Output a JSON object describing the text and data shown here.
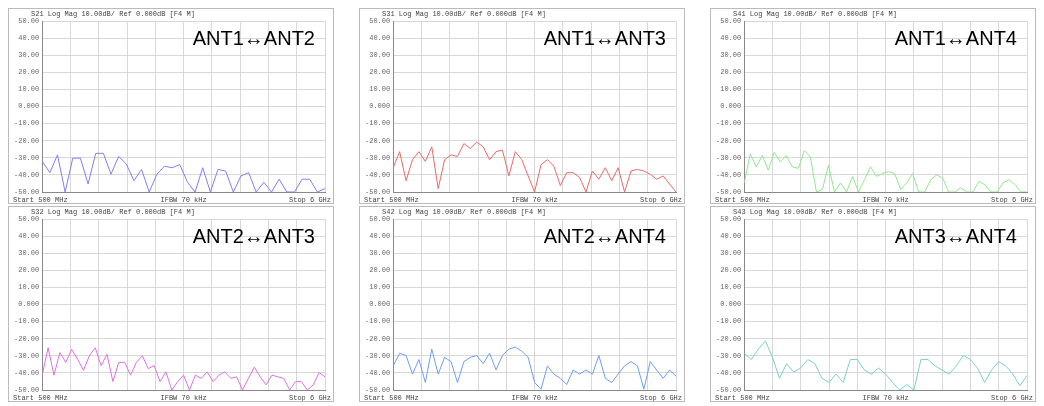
{
  "chart_data": [
    {
      "type": "line",
      "title": "ANT1↔ANT2",
      "subtitle": "S21 Log Mag 10.00dB/ Ref 0.000dB [F4 M]",
      "annotations": [
        "Start 500 MHz",
        "IFBW 70 kHz",
        "Stop 6 GHz"
      ],
      "categories": [
        null,
        null,
        null,
        null,
        null,
        null,
        null,
        null,
        null,
        null,
        null,
        null,
        null,
        null,
        null,
        null,
        null,
        null,
        null,
        null,
        null,
        null,
        null,
        null,
        null,
        null,
        null,
        null,
        null,
        null,
        null,
        null,
        null,
        null,
        null,
        null,
        null,
        null
      ],
      "ylim": [
        -50,
        50
      ],
      "yticks": [
        {
          "value": -50,
          "label": "-50.00"
        },
        {
          "value": -40,
          "label": "-40.00"
        },
        {
          "value": -30,
          "label": "-30.00"
        },
        {
          "value": -20,
          "label": "-20.00"
        },
        {
          "value": -10,
          "label": "-10.00"
        },
        {
          "value": 0,
          "label": "0.000"
        },
        {
          "value": 10,
          "label": "10.00"
        },
        {
          "value": 20,
          "label": "20.00"
        },
        {
          "value": 30,
          "label": "30.00"
        },
        {
          "value": 40,
          "label": "40.00"
        },
        {
          "value": 50,
          "label": "50.00"
        }
      ],
      "grid": true,
      "tick_labels": "y",
      "line_style": "solid",
      "marker": "none",
      "series": [
        {
          "color": "#8080f0",
          "values": [
            -32.1,
            -38.7,
            -28.3,
            -50,
            -30.2,
            -30.2,
            -45.3,
            -27.4,
            -27.4,
            -39.6,
            -29.2,
            -33.6,
            -43.4,
            -36.8,
            -50,
            -39.6,
            -34.9,
            -35.8,
            -34,
            -44.2,
            -50,
            -35.8,
            -50,
            -36.8,
            -37.7,
            -50,
            -40.6,
            -38.7,
            -50,
            -44.3,
            -50,
            -42.5,
            -50,
            -50,
            -42.5,
            -42.5,
            -50,
            -48
          ]
        }
      ]
    },
    {
      "type": "line",
      "title": "ANT1↔ANT3",
      "subtitle": "S31 Log Mag 10.00dB/ Ref 0.000dB [F4 M]",
      "annotations": [
        "Start 500 MHz",
        "IFBW 70 kHz",
        "Stop 6 GHz"
      ],
      "categories": [
        null,
        null,
        null,
        null,
        null,
        null,
        null,
        null,
        null,
        null,
        null,
        null,
        null,
        null,
        null,
        null,
        null,
        null,
        null,
        null,
        null,
        null,
        null,
        null,
        null,
        null,
        null,
        null,
        null,
        null,
        null,
        null,
        null,
        null,
        null,
        null,
        null,
        null,
        null,
        null,
        null,
        null,
        null,
        null,
        null
      ],
      "ylim": [
        -50,
        50
      ],
      "yticks": [
        {
          "value": -50,
          "label": "-50.00"
        },
        {
          "value": -40,
          "label": "-40.00"
        },
        {
          "value": -30,
          "label": "-30.00"
        },
        {
          "value": -20,
          "label": "-20.00"
        },
        {
          "value": -10,
          "label": "-10.00"
        },
        {
          "value": 0,
          "label": "0.000"
        },
        {
          "value": 10,
          "label": "10.00"
        },
        {
          "value": 20,
          "label": "20.00"
        },
        {
          "value": 30,
          "label": "30.00"
        },
        {
          "value": 40,
          "label": "40.00"
        },
        {
          "value": 50,
          "label": "50.00"
        }
      ],
      "grid": true,
      "tick_labels": "y",
      "line_style": "solid",
      "marker": "none",
      "series": [
        {
          "color": "#e86b6b",
          "values": [
            -35.8,
            -26.4,
            -43.4,
            -31.1,
            -26.4,
            -32.1,
            -23.6,
            -48.1,
            -31.1,
            -28.3,
            -29.2,
            -21.7,
            -24.5,
            -20.8,
            -23.6,
            -31.1,
            -26.4,
            -25.5,
            -40.6,
            -26.4,
            -31.1,
            -40.6,
            -50,
            -34,
            -31.1,
            -34.9,
            -46.2,
            -38.7,
            -38.7,
            -41.5,
            -50,
            -37.7,
            -42.5,
            -35.8,
            -43.4,
            -35.8,
            -50,
            -37.7,
            -36.8,
            -37.7,
            -39.6,
            -42.5,
            -40.6,
            -45.3,
            -50
          ]
        }
      ]
    },
    {
      "type": "line",
      "title": "ANT1↔ANT4",
      "subtitle": "S41 Log Mag 10.00dB/ Ref 0.000dB [F4 M]",
      "annotations": [
        "Start 500 MHz",
        "IFBW 70 kHz",
        "Stop 6 GHz"
      ],
      "categories": [
        null,
        null,
        null,
        null,
        null,
        null,
        null,
        null,
        null,
        null,
        null,
        null,
        null,
        null,
        null,
        null,
        null,
        null,
        null,
        null,
        null,
        null,
        null,
        null,
        null,
        null,
        null,
        null,
        null,
        null,
        null,
        null,
        null,
        null,
        null,
        null,
        null,
        null,
        null,
        null,
        null,
        null,
        null,
        null,
        null,
        null,
        null,
        null
      ],
      "ylim": [
        -50,
        50
      ],
      "yticks": [
        {
          "value": -50,
          "label": "-50.00"
        },
        {
          "value": -40,
          "label": "-40.00"
        },
        {
          "value": -30,
          "label": "-30.00"
        },
        {
          "value": -20,
          "label": "-20.00"
        },
        {
          "value": -10,
          "label": "-10.00"
        },
        {
          "value": 0,
          "label": "0.000"
        },
        {
          "value": 10,
          "label": "10.00"
        },
        {
          "value": 20,
          "label": "20.00"
        },
        {
          "value": 30,
          "label": "30.00"
        },
        {
          "value": 40,
          "label": "40.00"
        },
        {
          "value": 50,
          "label": "50.00"
        }
      ],
      "grid": true,
      "tick_labels": "y",
      "line_style": "solid",
      "marker": "none",
      "series": [
        {
          "color": "#90e890",
          "values": [
            -44.7,
            -27.7,
            -35.3,
            -28.7,
            -37.2,
            -26.8,
            -32.5,
            -28.7,
            -35.3,
            -36.2,
            -25.8,
            -29.6,
            -50,
            -48.5,
            -34.3,
            -50,
            -44.7,
            -50,
            -40.9,
            -50,
            -42.8,
            -35.3,
            -40.9,
            -39.1,
            -38.1,
            -39.1,
            -48.5,
            -44.7,
            -39.1,
            -50,
            -50,
            -42.8,
            -40,
            -41.9,
            -50,
            -50,
            -47.5,
            -50,
            -50,
            -43.8,
            -45.7,
            -50,
            -50,
            -44.7,
            -42.8,
            -45.7,
            -50,
            -50
          ]
        }
      ]
    },
    {
      "type": "line",
      "title": "ANT2↔ANT3",
      "subtitle": "S32 Log Mag 10.00dB/ Ref 0.000dB [F4 M]",
      "annotations": [
        "Start 500 MHz",
        "IFBW 70 kHz",
        "Stop 6 GHz"
      ],
      "categories": [
        null,
        null,
        null,
        null,
        null,
        null,
        null,
        null,
        null,
        null,
        null,
        null,
        null,
        null,
        null,
        null,
        null,
        null,
        null,
        null,
        null,
        null,
        null,
        null,
        null,
        null,
        null,
        null,
        null,
        null,
        null,
        null,
        null,
        null,
        null,
        null,
        null,
        null,
        null,
        null,
        null,
        null,
        null,
        null,
        null,
        null,
        null,
        null,
        null
      ],
      "ylim": [
        -50,
        50
      ],
      "yticks": [
        {
          "value": -50,
          "label": "-50.00"
        },
        {
          "value": -40,
          "label": "-40.00"
        },
        {
          "value": -30,
          "label": "-30.00"
        },
        {
          "value": -20,
          "label": "-20.00"
        },
        {
          "value": -10,
          "label": "-10.00"
        },
        {
          "value": 0,
          "label": "0.000"
        },
        {
          "value": 10,
          "label": "10.00"
        },
        {
          "value": 20,
          "label": "20.00"
        },
        {
          "value": 30,
          "label": "30.00"
        },
        {
          "value": 40,
          "label": "40.00"
        },
        {
          "value": 50,
          "label": "50.00"
        }
      ],
      "grid": true,
      "tick_labels": "y",
      "line_style": "solid",
      "marker": "none",
      "series": [
        {
          "color": "#e070e0",
          "values": [
            -41.3,
            -25.3,
            -41.3,
            -28.1,
            -33.8,
            -26.2,
            -31.9,
            -38.5,
            -30,
            -25.3,
            -35.7,
            -29.1,
            -45.1,
            -33.8,
            -33.8,
            -41.3,
            -33.8,
            -30,
            -37.5,
            -35.7,
            -45.1,
            -39.4,
            -50,
            -45.1,
            -41.3,
            -50,
            -41.3,
            -43.2,
            -39.4,
            -45.1,
            -41.3,
            -39.4,
            -43.2,
            -42.3,
            -50,
            -43.2,
            -36.6,
            -42.3,
            -47,
            -41.3,
            -42.3,
            -43.2,
            -50,
            -45.1,
            -45.1,
            -50,
            -47,
            -39.8,
            -42.3
          ]
        }
      ]
    },
    {
      "type": "line",
      "title": "ANT2↔ANT4",
      "subtitle": "S42 Log Mag 10.00dB/ Ref 0.000dB [F4 M]",
      "annotations": [
        "Start 500 MHz",
        "IFBW 70 kHz",
        "Stop 6 GHz"
      ],
      "categories": [
        null,
        null,
        null,
        null,
        null,
        null,
        null,
        null,
        null,
        null,
        null,
        null,
        null,
        null,
        null,
        null,
        null,
        null,
        null,
        null,
        null,
        null,
        null,
        null,
        null,
        null,
        null,
        null,
        null,
        null,
        null,
        null,
        null,
        null,
        null,
        null,
        null,
        null,
        null,
        null,
        null,
        null,
        null,
        null,
        null
      ],
      "ylim": [
        -50,
        50
      ],
      "yticks": [
        {
          "value": -50,
          "label": "-50.00"
        },
        {
          "value": -40,
          "label": "-40.00"
        },
        {
          "value": -30,
          "label": "-30.00"
        },
        {
          "value": -20,
          "label": "-20.00"
        },
        {
          "value": -10,
          "label": "-10.00"
        },
        {
          "value": 0,
          "label": "0.000"
        },
        {
          "value": 10,
          "label": "10.00"
        },
        {
          "value": 20,
          "label": "20.00"
        },
        {
          "value": 30,
          "label": "30.00"
        },
        {
          "value": 40,
          "label": "40.00"
        },
        {
          "value": 50,
          "label": "50.00"
        }
      ],
      "grid": true,
      "tick_labels": "y",
      "line_style": "solid",
      "marker": "none",
      "series": [
        {
          "color": "#6f9ff0",
          "values": [
            -35.9,
            -28.5,
            -29.8,
            -40.7,
            -32.2,
            -45.6,
            -26.1,
            -40.7,
            -30.9,
            -33.4,
            -45.6,
            -33.4,
            -30.9,
            -29.8,
            -34.6,
            -28.5,
            -38.3,
            -29.8,
            -26.1,
            -24.9,
            -27.3,
            -30.9,
            -45.6,
            -49.5,
            -35.9,
            -40.7,
            -43.2,
            -46.8,
            -38.3,
            -40.7,
            -38.3,
            -40.7,
            -29.8,
            -43.2,
            -45.6,
            -40.7,
            -35.9,
            -33.4,
            -35.9,
            -49.5,
            -33.4,
            -38.3,
            -43.2,
            -38.3,
            -41.9
          ]
        }
      ]
    },
    {
      "type": "line",
      "title": "ANT3↔ANT4",
      "subtitle": "S43 Log Mag 10.00dB/ Ref 0.000dB [F4 M]",
      "annotations": [
        "Start 500 MHz",
        "IFBW 70 kHz",
        "Stop 6 GHz"
      ],
      "categories": [
        null,
        null,
        null,
        null,
        null,
        null,
        null,
        null,
        null,
        null,
        null,
        null,
        null,
        null,
        null,
        null,
        null,
        null,
        null,
        null,
        null,
        null,
        null,
        null,
        null,
        null,
        null,
        null,
        null,
        null,
        null,
        null,
        null,
        null,
        null,
        null,
        null,
        null,
        null,
        null,
        null
      ],
      "ylim": [
        -50,
        50
      ],
      "yticks": [
        {
          "value": -50,
          "label": "-50.00"
        },
        {
          "value": -40,
          "label": "-40.00"
        },
        {
          "value": -30,
          "label": "-30.00"
        },
        {
          "value": -20,
          "label": "-20.00"
        },
        {
          "value": -10,
          "label": "-10.00"
        },
        {
          "value": 0,
          "label": "0.000"
        },
        {
          "value": 10,
          "label": "10.00"
        },
        {
          "value": 20,
          "label": "20.00"
        },
        {
          "value": 30,
          "label": "30.00"
        },
        {
          "value": 40,
          "label": "40.00"
        },
        {
          "value": 50,
          "label": "50.00"
        }
      ],
      "grid": true,
      "tick_labels": "y",
      "line_style": "solid",
      "marker": "none",
      "series": [
        {
          "color": "#80d0c8",
          "values": [
            -28.5,
            -32.2,
            -26.1,
            -21.2,
            -30.9,
            -43.2,
            -34.6,
            -39.5,
            -37.1,
            -32.2,
            -34.6,
            -43.2,
            -45.6,
            -40.7,
            -45.6,
            -32.2,
            -32.2,
            -38.3,
            -40.7,
            -37.1,
            -40.7,
            -45.6,
            -50,
            -46.8,
            -50,
            -32.2,
            -32.2,
            -35.9,
            -38.3,
            -40.7,
            -35.9,
            -29.8,
            -32.2,
            -37.1,
            -45.6,
            -38.3,
            -33.4,
            -35.9,
            -40.7,
            -47.6,
            -41.5
          ]
        }
      ]
    }
  ]
}
